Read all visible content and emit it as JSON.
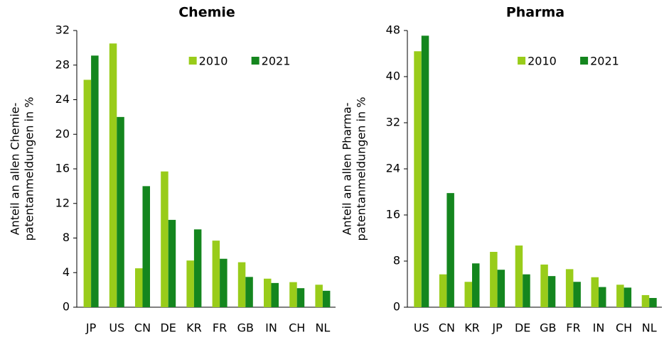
{
  "chart_data": [
    {
      "type": "bar",
      "title": "Chemie",
      "ylabel": [
        "Anteil an allen Chemie-",
        "patentanmeldungen in %"
      ],
      "categories": [
        "JP",
        "US",
        "CN",
        "DE",
        "KR",
        "FR",
        "GB",
        "IN",
        "CH",
        "NL"
      ],
      "series": [
        {
          "name": "2010",
          "color": "#99cc1a",
          "values": [
            26.3,
            30.5,
            4.5,
            15.7,
            5.4,
            7.7,
            5.2,
            3.3,
            2.9,
            2.6
          ]
        },
        {
          "name": "2021",
          "color": "#14861e",
          "values": [
            29.1,
            22.0,
            14.0,
            10.1,
            9.0,
            5.6,
            3.5,
            2.8,
            2.2,
            1.9
          ]
        }
      ],
      "ylim": [
        0,
        32
      ],
      "yticks": [
        0,
        4,
        8,
        12,
        16,
        20,
        24,
        28,
        32
      ],
      "grid": false,
      "legend": "top-right"
    },
    {
      "type": "bar",
      "title": "Pharma",
      "ylabel": [
        "Anteil an allen Pharma-",
        "patentanmeldungen in %"
      ],
      "categories": [
        "US",
        "CN",
        "KR",
        "JP",
        "DE",
        "GB",
        "FR",
        "IN",
        "CH",
        "NL"
      ],
      "series": [
        {
          "name": "2010",
          "color": "#99cc1a",
          "values": [
            44.4,
            5.7,
            4.4,
            9.6,
            10.7,
            7.4,
            6.6,
            5.2,
            3.9,
            2.1
          ]
        },
        {
          "name": "2021",
          "color": "#14861e",
          "values": [
            47.1,
            19.8,
            7.6,
            6.5,
            5.7,
            5.4,
            4.4,
            3.5,
            3.4,
            1.6
          ]
        }
      ],
      "ylim": [
        0,
        48
      ],
      "yticks": [
        0,
        8,
        16,
        24,
        32,
        40,
        48
      ],
      "grid": false,
      "legend": "top-right"
    }
  ]
}
